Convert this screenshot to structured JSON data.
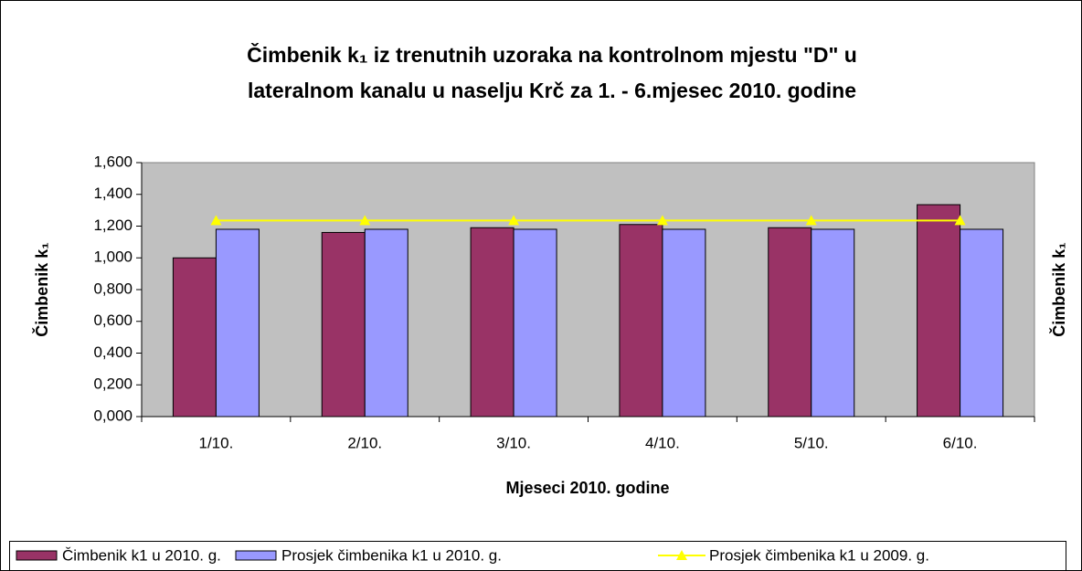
{
  "chart_data": {
    "type": "bar",
    "title": [
      "Čimbenik k₁ iz trenutnih uzoraka na kontrolnom mjestu \"D\" u",
      "lateralnom kanalu u naselju Krč za 1. - 6.mjesec  2010. godine"
    ],
    "xlabel": "Mjeseci 2010. godine",
    "ylabel": "Čimbenik k₁",
    "y2label": "Čimbenik k₁",
    "categories": [
      "1/10.",
      "2/10.",
      "3/10.",
      "4/10.",
      "5/10.",
      "6/10."
    ],
    "series": [
      {
        "name": "Čimbenik k1 u 2010. g.",
        "type": "bar",
        "color": "#993366",
        "values": [
          1.0,
          1.16,
          1.19,
          1.21,
          1.19,
          1.335
        ]
      },
      {
        "name": "Prosjek čimbenika k1 u 2010. g.",
        "type": "bar",
        "color": "#9999ff",
        "values": [
          1.18,
          1.18,
          1.18,
          1.18,
          1.18,
          1.18
        ]
      },
      {
        "name": "Prosjek čimbenika k1 u 2009. g.",
        "type": "line",
        "color": "#ffff00",
        "values": [
          1.235,
          1.235,
          1.235,
          1.235,
          1.235,
          1.235
        ]
      }
    ],
    "ylim": [
      0,
      1.6
    ],
    "yticks": [
      {
        "value": 0,
        "label": "0,000"
      },
      {
        "value": 0.2,
        "label": "0,200"
      },
      {
        "value": 0.4,
        "label": "0,400"
      },
      {
        "value": 0.6,
        "label": "0,600"
      },
      {
        "value": 0.8,
        "label": "0,800"
      },
      {
        "value": 1.0,
        "label": "1,000"
      },
      {
        "value": 1.2,
        "label": "1,200"
      },
      {
        "value": 1.4,
        "label": "1,400"
      },
      {
        "value": 1.6,
        "label": "1,600"
      }
    ],
    "legend": "bottom"
  }
}
